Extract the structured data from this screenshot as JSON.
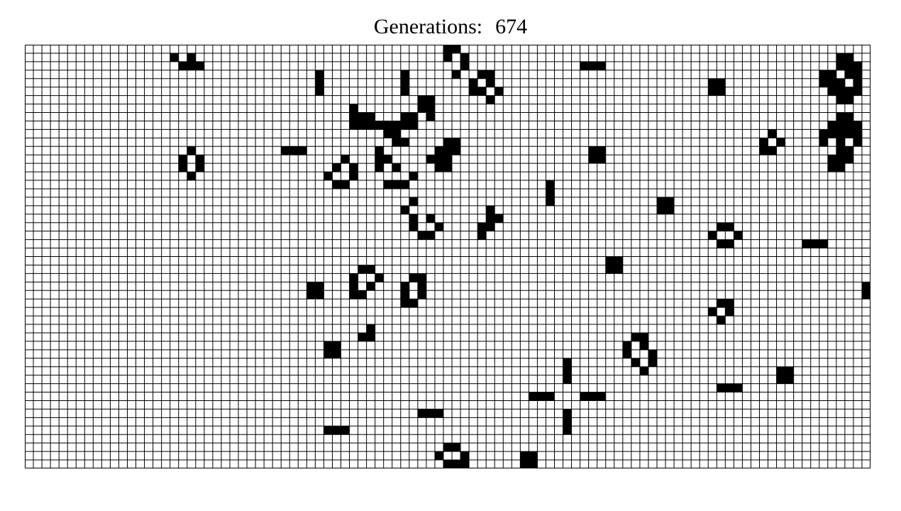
{
  "header": {
    "label": "Generations:",
    "value": "674"
  },
  "board": {
    "columns": 99,
    "rows": 50,
    "colors": {
      "alive": "#000000",
      "dead": "#ffffff",
      "gridline": "#000000"
    },
    "live_cells": [
      [
        17,
        1
      ],
      [
        18,
        2
      ],
      [
        19,
        2
      ],
      [
        20,
        2
      ],
      [
        19,
        1
      ],
      [
        49,
        0
      ],
      [
        50,
        0
      ],
      [
        49,
        1
      ],
      [
        51,
        1
      ],
      [
        51,
        2
      ],
      [
        50,
        3
      ],
      [
        65,
        2
      ],
      [
        66,
        2
      ],
      [
        67,
        2
      ],
      [
        95,
        1
      ],
      [
        96,
        1
      ],
      [
        95,
        2
      ],
      [
        96,
        2
      ],
      [
        97,
        2
      ],
      [
        93,
        3
      ],
      [
        94,
        3
      ],
      [
        96,
        3
      ],
      [
        97,
        3
      ],
      [
        93,
        4
      ],
      [
        94,
        4
      ],
      [
        95,
        4
      ],
      [
        97,
        4
      ],
      [
        94,
        5
      ],
      [
        95,
        5
      ],
      [
        96,
        5
      ],
      [
        97,
        5
      ],
      [
        95,
        6
      ],
      [
        96,
        6
      ],
      [
        34,
        3
      ],
      [
        34,
        4
      ],
      [
        34,
        5
      ],
      [
        44,
        3
      ],
      [
        44,
        4
      ],
      [
        44,
        5
      ],
      [
        53,
        3
      ],
      [
        54,
        3
      ],
      [
        52,
        4
      ],
      [
        54,
        4
      ],
      [
        52,
        5
      ],
      [
        53,
        5
      ],
      [
        55,
        5
      ],
      [
        54,
        6
      ],
      [
        80,
        4
      ],
      [
        81,
        4
      ],
      [
        80,
        5
      ],
      [
        81,
        5
      ],
      [
        46,
        6
      ],
      [
        47,
        6
      ],
      [
        46,
        7
      ],
      [
        47,
        7
      ],
      [
        47,
        8
      ],
      [
        45,
        8
      ],
      [
        44,
        8
      ],
      [
        38,
        7
      ],
      [
        38,
        8
      ],
      [
        39,
        8
      ],
      [
        40,
        8
      ],
      [
        38,
        9
      ],
      [
        39,
        9
      ],
      [
        40,
        9
      ],
      [
        41,
        9
      ],
      [
        44,
        9
      ],
      [
        45,
        9
      ],
      [
        42,
        9
      ],
      [
        43,
        9
      ],
      [
        42,
        10
      ],
      [
        43,
        10
      ],
      [
        43,
        11
      ],
      [
        44,
        11
      ],
      [
        95,
        8
      ],
      [
        96,
        8
      ],
      [
        94,
        9
      ],
      [
        95,
        9
      ],
      [
        96,
        9
      ],
      [
        97,
        9
      ],
      [
        93,
        10
      ],
      [
        94,
        10
      ],
      [
        95,
        10
      ],
      [
        96,
        10
      ],
      [
        97,
        10
      ],
      [
        93,
        11
      ],
      [
        95,
        11
      ],
      [
        97,
        11
      ],
      [
        95,
        12
      ],
      [
        96,
        12
      ],
      [
        94,
        13
      ],
      [
        95,
        13
      ],
      [
        96,
        13
      ],
      [
        94,
        14
      ],
      [
        95,
        14
      ],
      [
        87,
        10
      ],
      [
        86,
        11
      ],
      [
        88,
        11
      ],
      [
        86,
        12
      ],
      [
        87,
        12
      ],
      [
        49,
        11
      ],
      [
        50,
        11
      ],
      [
        48,
        12
      ],
      [
        49,
        12
      ],
      [
        50,
        12
      ],
      [
        47,
        13
      ],
      [
        48,
        13
      ],
      [
        49,
        13
      ],
      [
        48,
        14
      ],
      [
        49,
        14
      ],
      [
        30,
        12
      ],
      [
        31,
        12
      ],
      [
        32,
        12
      ],
      [
        41,
        12
      ],
      [
        41,
        13
      ],
      [
        42,
        13
      ],
      [
        41,
        14
      ],
      [
        43,
        14
      ],
      [
        19,
        12
      ],
      [
        18,
        13
      ],
      [
        20,
        13
      ],
      [
        18,
        14
      ],
      [
        20,
        14
      ],
      [
        19,
        15
      ],
      [
        66,
        12
      ],
      [
        67,
        12
      ],
      [
        66,
        13
      ],
      [
        67,
        13
      ],
      [
        37,
        13
      ],
      [
        36,
        14
      ],
      [
        38,
        14
      ],
      [
        35,
        15
      ],
      [
        38,
        15
      ],
      [
        36,
        16
      ],
      [
        37,
        16
      ],
      [
        45,
        15
      ],
      [
        42,
        16
      ],
      [
        43,
        16
      ],
      [
        44,
        16
      ],
      [
        61,
        16
      ],
      [
        61,
        17
      ],
      [
        61,
        18
      ],
      [
        74,
        18
      ],
      [
        75,
        18
      ],
      [
        74,
        19
      ],
      [
        75,
        19
      ],
      [
        45,
        18
      ],
      [
        44,
        19
      ],
      [
        45,
        20
      ],
      [
        47,
        20
      ],
      [
        45,
        21
      ],
      [
        48,
        21
      ],
      [
        46,
        22
      ],
      [
        47,
        22
      ],
      [
        54,
        19
      ],
      [
        54,
        20
      ],
      [
        55,
        20
      ],
      [
        53,
        21
      ],
      [
        54,
        21
      ],
      [
        53,
        22
      ],
      [
        81,
        21
      ],
      [
        82,
        21
      ],
      [
        80,
        22
      ],
      [
        83,
        22
      ],
      [
        81,
        23
      ],
      [
        82,
        23
      ],
      [
        91,
        23
      ],
      [
        92,
        23
      ],
      [
        93,
        23
      ],
      [
        68,
        25
      ],
      [
        69,
        25
      ],
      [
        68,
        26
      ],
      [
        69,
        26
      ],
      [
        39,
        26
      ],
      [
        40,
        26
      ],
      [
        38,
        27
      ],
      [
        41,
        27
      ],
      [
        38,
        28
      ],
      [
        40,
        28
      ],
      [
        38,
        29
      ],
      [
        39,
        29
      ],
      [
        45,
        27
      ],
      [
        46,
        27
      ],
      [
        44,
        28
      ],
      [
        46,
        28
      ],
      [
        44,
        29
      ],
      [
        46,
        29
      ],
      [
        44,
        30
      ],
      [
        45,
        30
      ],
      [
        33,
        28
      ],
      [
        34,
        28
      ],
      [
        33,
        29
      ],
      [
        34,
        29
      ],
      [
        98,
        28
      ],
      [
        98,
        29
      ],
      [
        81,
        30
      ],
      [
        82,
        30
      ],
      [
        80,
        31
      ],
      [
        82,
        31
      ],
      [
        81,
        32
      ],
      [
        40,
        33
      ],
      [
        39,
        34
      ],
      [
        40,
        34
      ],
      [
        71,
        34
      ],
      [
        72,
        34
      ],
      [
        70,
        35
      ],
      [
        72,
        35
      ],
      [
        70,
        36
      ],
      [
        73,
        36
      ],
      [
        71,
        37
      ],
      [
        73,
        37
      ],
      [
        72,
        38
      ],
      [
        35,
        35
      ],
      [
        36,
        35
      ],
      [
        35,
        36
      ],
      [
        36,
        36
      ],
      [
        63,
        37
      ],
      [
        63,
        38
      ],
      [
        63,
        39
      ],
      [
        88,
        38
      ],
      [
        89,
        38
      ],
      [
        88,
        39
      ],
      [
        89,
        39
      ],
      [
        81,
        40
      ],
      [
        82,
        40
      ],
      [
        83,
        40
      ],
      [
        59,
        41
      ],
      [
        60,
        41
      ],
      [
        61,
        41
      ],
      [
        65,
        41
      ],
      [
        66,
        41
      ],
      [
        67,
        41
      ],
      [
        46,
        43
      ],
      [
        47,
        43
      ],
      [
        48,
        43
      ],
      [
        63,
        43
      ],
      [
        63,
        44
      ],
      [
        63,
        45
      ],
      [
        35,
        45
      ],
      [
        36,
        45
      ],
      [
        37,
        45
      ],
      [
        49,
        47
      ],
      [
        50,
        47
      ],
      [
        48,
        48
      ],
      [
        51,
        48
      ],
      [
        49,
        49
      ],
      [
        50,
        49
      ],
      [
        51,
        49
      ],
      [
        58,
        48
      ],
      [
        59,
        48
      ],
      [
        58,
        49
      ],
      [
        59,
        49
      ]
    ]
  }
}
